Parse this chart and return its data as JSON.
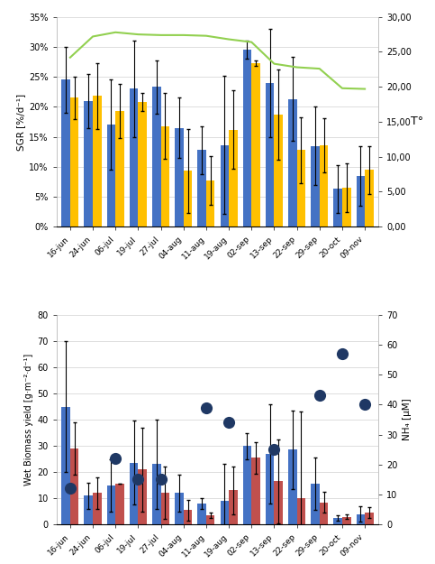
{
  "categories": [
    "16-jun",
    "24-jun",
    "06-jul",
    "19-jul",
    "27-jul",
    "04-aug",
    "11-aug",
    "19-aug",
    "02-sep",
    "13-sep",
    "22-sep",
    "29-sep",
    "20-oct",
    "09-nov"
  ],
  "sgr_blue": [
    0.245,
    0.21,
    0.17,
    0.23,
    0.233,
    0.165,
    0.128,
    0.136,
    0.295,
    0.24,
    0.213,
    0.135,
    0.063,
    0.085
  ],
  "sgr_yellow": [
    0.215,
    0.218,
    0.193,
    0.208,
    0.168,
    0.093,
    0.077,
    0.162,
    0.273,
    0.187,
    0.128,
    0.136,
    0.065,
    0.095
  ],
  "sgr_blue_err_up": [
    0.055,
    0.045,
    0.075,
    0.08,
    0.045,
    0.05,
    0.04,
    0.115,
    0.015,
    0.09,
    0.07,
    0.065,
    0.04,
    0.05
  ],
  "sgr_blue_err_dn": [
    0.055,
    0.045,
    0.075,
    0.08,
    0.045,
    0.05,
    0.04,
    0.115,
    0.015,
    0.09,
    0.07,
    0.065,
    0.04,
    0.05
  ],
  "sgr_yellow_err_up": [
    0.035,
    0.055,
    0.045,
    0.015,
    0.055,
    0.07,
    0.04,
    0.065,
    0.005,
    0.075,
    0.055,
    0.045,
    0.04,
    0.04
  ],
  "sgr_yellow_err_dn": [
    0.035,
    0.055,
    0.045,
    0.015,
    0.055,
    0.07,
    0.04,
    0.065,
    0.005,
    0.075,
    0.055,
    0.045,
    0.04,
    0.04
  ],
  "temp_line": [
    24.2,
    27.2,
    27.8,
    27.5,
    27.4,
    27.4,
    27.3,
    26.8,
    26.4,
    23.3,
    22.8,
    22.6,
    19.8,
    19.7
  ],
  "biomass_blue": [
    45,
    11,
    15,
    23.5,
    23,
    12,
    8,
    9,
    30,
    27,
    28.5,
    15.5,
    2.5,
    4
  ],
  "biomass_red": [
    29,
    12,
    15.5,
    21,
    12,
    5.5,
    3.5,
    13,
    25.5,
    16.5,
    10,
    8.5,
    3,
    4.5
  ],
  "biomass_blue_err_up": [
    25,
    5,
    10,
    16,
    17,
    7,
    2,
    14,
    5,
    19,
    15,
    10,
    1,
    3
  ],
  "biomass_blue_err_dn": [
    25,
    5,
    10,
    16,
    17,
    7,
    2,
    14,
    5,
    19,
    15,
    10,
    1,
    3
  ],
  "biomass_red_err_up": [
    10,
    6,
    0,
    16,
    10,
    4,
    1,
    9,
    6,
    16,
    33,
    4,
    1,
    2
  ],
  "biomass_red_err_dn": [
    10,
    6,
    0,
    16,
    10,
    4,
    1,
    9,
    6,
    16,
    33,
    4,
    1,
    2
  ],
  "nh4_dots": [
    12,
    null,
    22,
    15,
    15,
    null,
    39,
    34,
    null,
    25,
    null,
    43,
    57,
    40
  ],
  "sgr_ylim": [
    0,
    0.35
  ],
  "sgr_y2lim": [
    0,
    30
  ],
  "bio_ylim": [
    0,
    80
  ],
  "bio_y2lim": [
    0,
    70
  ],
  "bar_width": 0.38,
  "color_blue": "#4472C4",
  "color_yellow": "#FFC000",
  "color_green": "#92D050",
  "color_red": "#C0504D",
  "color_dot": "#1F3864",
  "sgr_ylabel": "SGR [%/d⁻¹]",
  "sgr_y2label": "T°",
  "bio_ylabel": "Wet Biomass yield [g·m⁻²·d⁻¹]",
  "bio_y2label": "NH₄ [μM]",
  "sgr_yticks": [
    0.0,
    0.05,
    0.1,
    0.15,
    0.2,
    0.25,
    0.3,
    0.35
  ],
  "sgr_ytick_labels": [
    "0%",
    "5%",
    "10%",
    "15%",
    "20%",
    "25%",
    "30%",
    "35%"
  ],
  "sgr_y2ticks": [
    0,
    5,
    10,
    15,
    20,
    25,
    30
  ],
  "sgr_y2tick_labels": [
    "0,00",
    "5,00",
    "10,00",
    "15,00",
    "20,00",
    "25,00",
    "30,00"
  ],
  "bio_yticks": [
    0,
    10,
    20,
    30,
    40,
    50,
    60,
    70,
    80
  ],
  "bio_ytick_labels": [
    "0",
    "10",
    "20",
    "30",
    "40",
    "50",
    "60",
    "70",
    "80"
  ],
  "bio_y2ticks": [
    0,
    10,
    20,
    30,
    40,
    50,
    60,
    70
  ],
  "bio_y2tick_labels": [
    "0",
    "10",
    "20",
    "30",
    "40",
    "50",
    "60",
    "70"
  ]
}
